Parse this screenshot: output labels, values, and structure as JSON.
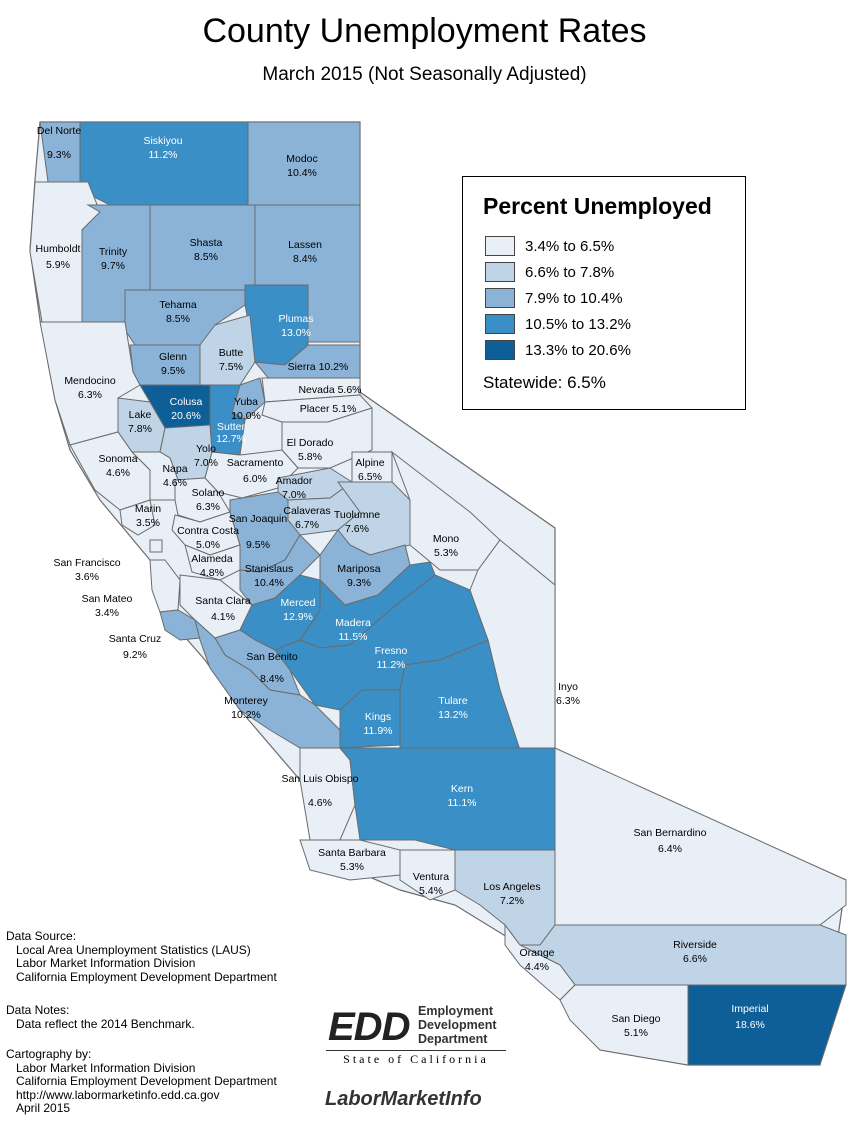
{
  "title": "County Unemployment Rates",
  "subtitle": "March 2015 (Not Seasonally Adjusted)",
  "legend": {
    "title": "Percent Unemployed",
    "classes": [
      {
        "label": "3.4% to 6.5%",
        "color": "#e8eff7"
      },
      {
        "label": "6.6% to 7.8%",
        "color": "#bfd4e6"
      },
      {
        "label": "7.9% to 10.4%",
        "color": "#8ab3d7"
      },
      {
        "label": "10.5% to 13.2%",
        "color": "#3a8fc7"
      },
      {
        "label": "13.3% to 20.6%",
        "color": "#0e5f97"
      }
    ],
    "statewide": "Statewide: 6.5%"
  },
  "counties": [
    {
      "name": "Del Norte",
      "rate": "9.3%"
    },
    {
      "name": "Siskiyou",
      "rate": "11.2%"
    },
    {
      "name": "Modoc",
      "rate": "10.4%"
    },
    {
      "name": "Humboldt",
      "rate": "5.9%"
    },
    {
      "name": "Trinity",
      "rate": "9.7%"
    },
    {
      "name": "Shasta",
      "rate": "8.5%"
    },
    {
      "name": "Lassen",
      "rate": "8.4%"
    },
    {
      "name": "Tehama",
      "rate": "8.5%"
    },
    {
      "name": "Plumas",
      "rate": "13.0%"
    },
    {
      "name": "Glenn",
      "rate": "9.5%"
    },
    {
      "name": "Butte",
      "rate": "7.5%"
    },
    {
      "name": "Sierra",
      "rate": "10.2%"
    },
    {
      "name": "Mendocino",
      "rate": "6.3%"
    },
    {
      "name": "Colusa",
      "rate": "20.6%"
    },
    {
      "name": "Yuba",
      "rate": "10.0%"
    },
    {
      "name": "Nevada",
      "rate": "5.6%"
    },
    {
      "name": "Placer",
      "rate": "5.1%"
    },
    {
      "name": "Lake",
      "rate": "7.8%"
    },
    {
      "name": "Sutter",
      "rate": "12.7%"
    },
    {
      "name": "Yolo",
      "rate": "7.0%"
    },
    {
      "name": "El Dorado",
      "rate": "5.8%"
    },
    {
      "name": "Alpine",
      "rate": "6.5%"
    },
    {
      "name": "Sonoma",
      "rate": "4.6%"
    },
    {
      "name": "Napa",
      "rate": "4.6%"
    },
    {
      "name": "Sacramento",
      "rate": "6.0%"
    },
    {
      "name": "Amador",
      "rate": "7.0%"
    },
    {
      "name": "Solano",
      "rate": "6.3%"
    },
    {
      "name": "Calaveras",
      "rate": "6.7%"
    },
    {
      "name": "Tuolumne",
      "rate": "7.6%"
    },
    {
      "name": "Marin",
      "rate": "3.5%"
    },
    {
      "name": "Contra Costa",
      "rate": "5.0%"
    },
    {
      "name": "San Joaquin",
      "rate": "9.5%"
    },
    {
      "name": "Mono",
      "rate": "5.3%"
    },
    {
      "name": "San Francisco",
      "rate": "3.6%"
    },
    {
      "name": "Alameda",
      "rate": "4.8%"
    },
    {
      "name": "Stanislaus",
      "rate": "10.4%"
    },
    {
      "name": "Mariposa",
      "rate": "9.3%"
    },
    {
      "name": "San Mateo",
      "rate": "3.4%"
    },
    {
      "name": "Santa Clara",
      "rate": "4.1%"
    },
    {
      "name": "Merced",
      "rate": "12.9%"
    },
    {
      "name": "Madera",
      "rate": "11.5%"
    },
    {
      "name": "Santa Cruz",
      "rate": "9.2%"
    },
    {
      "name": "Fresno",
      "rate": "11.2%"
    },
    {
      "name": "San Benito",
      "rate": "8.4%"
    },
    {
      "name": "Inyo",
      "rate": "6.3%"
    },
    {
      "name": "Monterey",
      "rate": "10.2%"
    },
    {
      "name": "Kings",
      "rate": "11.9%"
    },
    {
      "name": "Tulare",
      "rate": "13.2%"
    },
    {
      "name": "San Luis Obispo",
      "rate": "4.6%"
    },
    {
      "name": "Kern",
      "rate": "11.1%"
    },
    {
      "name": "San Bernardino",
      "rate": "6.4%"
    },
    {
      "name": "Santa Barbara",
      "rate": "5.3%"
    },
    {
      "name": "Ventura",
      "rate": "5.4%"
    },
    {
      "name": "Los Angeles",
      "rate": "7.2%"
    },
    {
      "name": "Riverside",
      "rate": "6.6%"
    },
    {
      "name": "Orange",
      "rate": "4.4%"
    },
    {
      "name": "San Diego",
      "rate": "5.1%"
    },
    {
      "name": "Imperial",
      "rate": "18.6%"
    }
  ],
  "notes": {
    "source_heading": "Data Source:",
    "source_lines": [
      "Local Area Unemployment Statistics (LAUS)",
      "Labor Market Information Division",
      "California Employment Development Department"
    ],
    "notes_heading": "Data Notes:",
    "notes_lines": [
      "Data reflect the 2014 Benchmark."
    ],
    "carto_heading": "Cartography by:",
    "carto_lines": [
      "Labor Market Information Division",
      "California Employment Development Department",
      "http://www.labormarketinfo.edd.ca.gov",
      "April 2015"
    ]
  },
  "logos": {
    "edd_mark": "EDD",
    "edd_words": [
      "Employment",
      "Development",
      "Department"
    ],
    "edd_state": "State of California",
    "lmi": "LaborMarketInfo"
  }
}
